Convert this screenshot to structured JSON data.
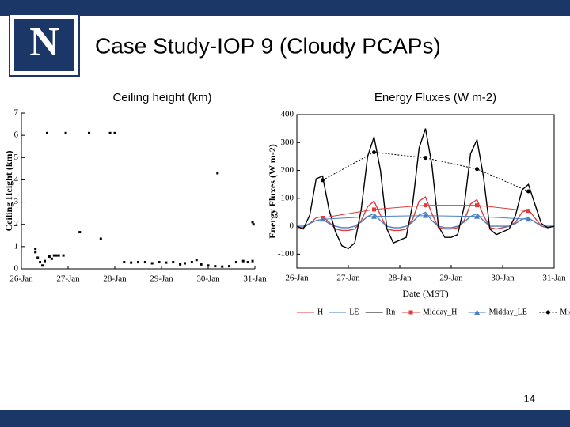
{
  "logo": "N",
  "title": "Case Study-IOP 9 (Cloudy PCAPs)",
  "page_number": "14",
  "chart_data": [
    {
      "type": "scatter",
      "title": "Ceiling height (km)",
      "y_label": "Ceiling Height (km)",
      "color": "#000000",
      "x": [
        0.55,
        0.95,
        1.45,
        1.9,
        2.0,
        4.2,
        1.7,
        1.25,
        4.95,
        4.97,
        0.3,
        0.3,
        0.35,
        0.4,
        0.45,
        0.5,
        0.6,
        0.65,
        0.7,
        0.75,
        0.8,
        0.9,
        2.2,
        2.35,
        2.5,
        2.65,
        2.8,
        2.95,
        3.1,
        3.25,
        3.4,
        3.5,
        3.65,
        3.75,
        3.85,
        4.0,
        4.15,
        4.3,
        4.45,
        4.6,
        4.75,
        4.85,
        4.95
      ],
      "values": [
        6.1,
        6.1,
        6.1,
        6.1,
        6.1,
        4.3,
        1.35,
        1.65,
        2.1,
        2.0,
        0.9,
        0.75,
        0.5,
        0.3,
        0.15,
        0.35,
        0.55,
        0.45,
        0.6,
        0.6,
        0.6,
        0.6,
        0.3,
        0.28,
        0.3,
        0.3,
        0.25,
        0.3,
        0.28,
        0.3,
        0.2,
        0.25,
        0.3,
        0.4,
        0.2,
        0.15,
        0.12,
        0.1,
        0.12,
        0.3,
        0.35,
        0.3,
        0.35
      ],
      "xlim": [
        0,
        5
      ],
      "ylim": [
        0,
        7
      ],
      "yticks": [
        0,
        1,
        2,
        3,
        4,
        5,
        6,
        7
      ],
      "xticks": [
        {
          "value": 0,
          "label": "26-Jan"
        },
        {
          "value": 1,
          "label": "27-Jan"
        },
        {
          "value": 2,
          "label": "28-Jan"
        },
        {
          "value": 3,
          "label": "29-Jan"
        },
        {
          "value": 4,
          "label": "30-Jan"
        },
        {
          "value": 5,
          "label": "31-Jan"
        }
      ]
    },
    {
      "type": "line",
      "title": "Energy Fluxes (W m-2)",
      "y_label": "Energy Fluxes (W m-2)",
      "x_label": "Date (MST)",
      "legend": "bottom",
      "x": [
        0,
        0.125,
        0.25,
        0.375,
        0.5,
        0.625,
        0.75,
        0.875,
        1,
        1.125,
        1.25,
        1.375,
        1.5,
        1.625,
        1.75,
        1.875,
        2,
        2.125,
        2.25,
        2.375,
        2.5,
        2.625,
        2.75,
        2.875,
        3,
        3.125,
        3.25,
        3.375,
        3.5,
        3.625,
        3.75,
        3.875,
        4,
        4.125,
        4.25,
        4.375,
        4.5,
        4.625,
        4.75,
        4.875,
        5
      ],
      "series": [
        {
          "name": "H",
          "color": "#e03c3c",
          "values": [
            -5,
            -5,
            10,
            30,
            35,
            15,
            -10,
            -15,
            -15,
            -10,
            20,
            70,
            90,
            40,
            -10,
            -15,
            -15,
            -10,
            25,
            90,
            105,
            45,
            -5,
            -10,
            -10,
            -5,
            20,
            80,
            95,
            40,
            -5,
            -10,
            -5,
            0,
            15,
            50,
            60,
            30,
            0,
            -5,
            0
          ]
        },
        {
          "name": "LE",
          "color": "#4a7fc4",
          "values": [
            0,
            0,
            10,
            20,
            25,
            10,
            0,
            -5,
            -5,
            0,
            15,
            35,
            45,
            20,
            0,
            -5,
            -5,
            0,
            15,
            40,
            50,
            20,
            0,
            -5,
            -5,
            0,
            15,
            35,
            45,
            20,
            0,
            0,
            0,
            0,
            10,
            25,
            30,
            15,
            0,
            0,
            0
          ]
        },
        {
          "name": "Rn",
          "color": "#000000",
          "values": [
            0,
            -10,
            40,
            170,
            180,
            60,
            -20,
            -70,
            -80,
            -60,
            60,
            250,
            320,
            200,
            -10,
            -60,
            -50,
            -40,
            80,
            280,
            350,
            220,
            0,
            -40,
            -40,
            -30,
            70,
            260,
            310,
            180,
            -10,
            -30,
            -20,
            -10,
            40,
            130,
            150,
            80,
            10,
            -5,
            0
          ]
        },
        {
          "name": "Midday_H",
          "color": "#e03c3c",
          "marker": "square",
          "x": [
            0.5,
            1.5,
            2.5,
            3.5,
            4.5
          ],
          "values": [
            30,
            60,
            75,
            75,
            55
          ]
        },
        {
          "name": "Midday_LE",
          "color": "#4a7fc4",
          "marker": "triangle",
          "x": [
            0.5,
            1.5,
            2.5,
            3.5,
            4.5
          ],
          "values": [
            25,
            35,
            38,
            35,
            25
          ]
        },
        {
          "name": "Midday_Rn",
          "color": "#000000",
          "marker": "circle",
          "line_style": "dotted",
          "x": [
            0.5,
            1.5,
            2.5,
            3.5,
            4.5
          ],
          "values": [
            165,
            265,
            245,
            205,
            125
          ]
        }
      ],
      "xlim": [
        0,
        5
      ],
      "ylim": [
        -150,
        400
      ],
      "yticks": [
        -100,
        0,
        100,
        200,
        300,
        400
      ],
      "xticks": [
        {
          "value": 0,
          "label": "26-Jan"
        },
        {
          "value": 1,
          "label": "27-Jan"
        },
        {
          "value": 2,
          "label": "28-Jan"
        },
        {
          "value": 3,
          "label": "29-Jan"
        },
        {
          "value": 4,
          "label": "30-Jan"
        },
        {
          "value": 5,
          "label": "31-Jan"
        }
      ]
    }
  ]
}
